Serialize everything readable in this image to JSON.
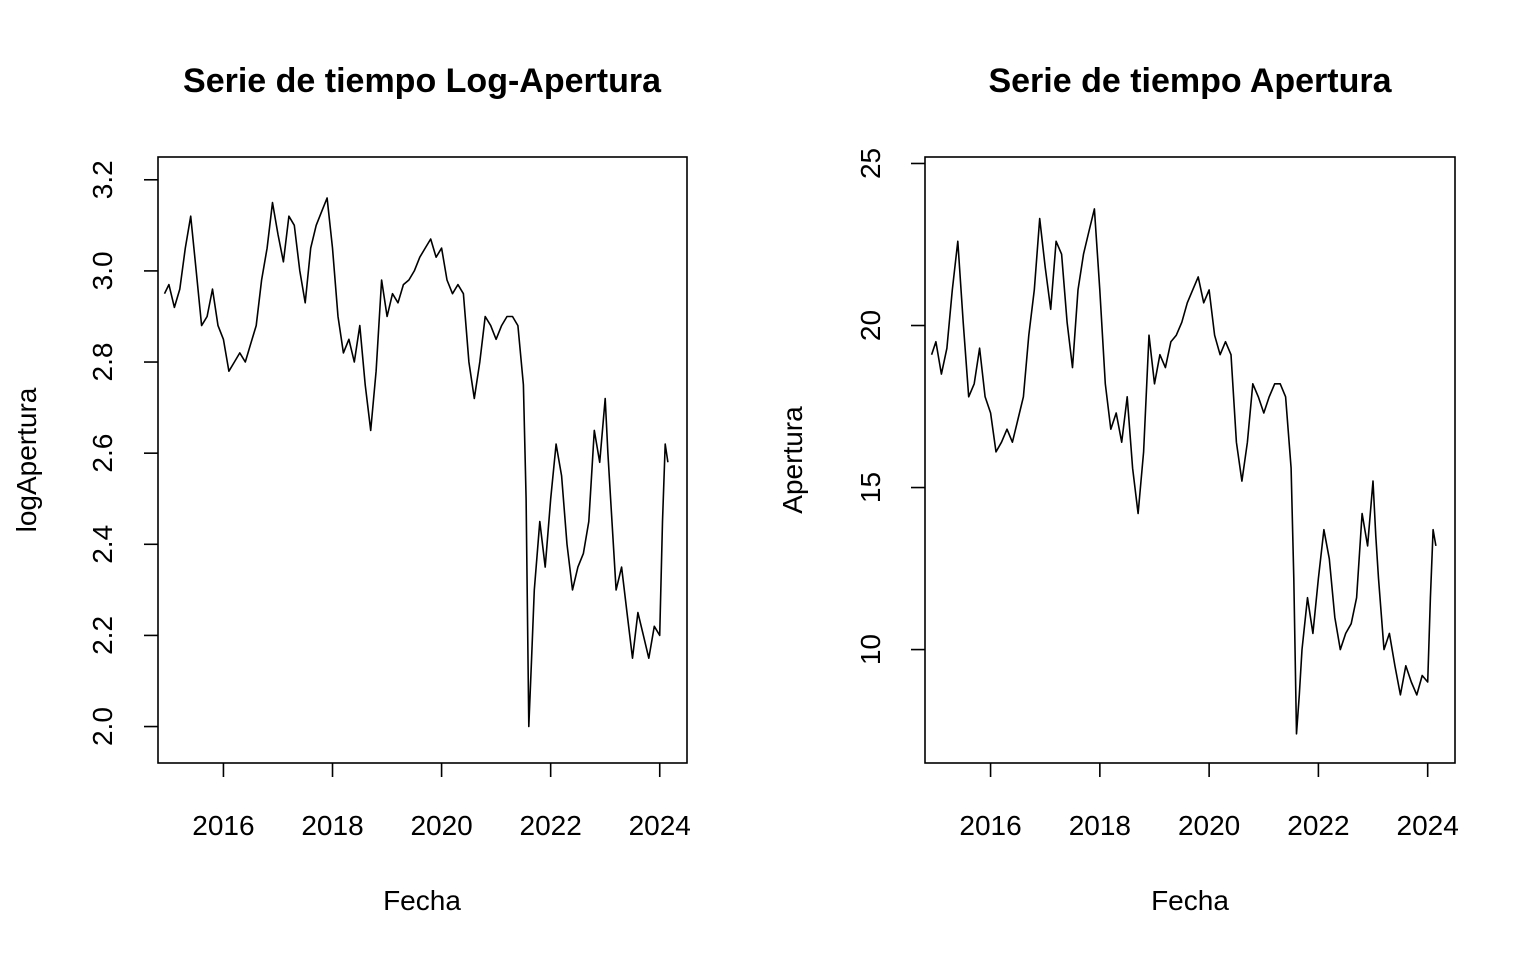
{
  "chart_data": [
    {
      "type": "line",
      "title": "Serie de tiempo Log-Apertura",
      "xlabel": "Fecha",
      "ylabel": "logApertura",
      "xlim": [
        2014.8,
        2024.5
      ],
      "ylim": [
        1.92,
        3.25
      ],
      "x_ticks": [
        2016,
        2018,
        2020,
        2022,
        2024
      ],
      "x_tick_labels": [
        "2016",
        "2018",
        "2020",
        "2022",
        "2024"
      ],
      "y_ticks": [
        2.0,
        2.2,
        2.4,
        2.6,
        2.8,
        3.0,
        3.2
      ],
      "y_tick_labels": [
        "2.0",
        "2.2",
        "2.4",
        "2.6",
        "2.8",
        "3.0",
        "3.2"
      ],
      "grid": false,
      "series": [
        {
          "color": "#000000",
          "x": [
            2014.92,
            2015.0,
            2015.1,
            2015.2,
            2015.3,
            2015.4,
            2015.5,
            2015.6,
            2015.7,
            2015.8,
            2015.9,
            2016.0,
            2016.1,
            2016.2,
            2016.3,
            2016.4,
            2016.5,
            2016.6,
            2016.7,
            2016.8,
            2016.9,
            2017.0,
            2017.1,
            2017.2,
            2017.3,
            2017.4,
            2017.5,
            2017.6,
            2017.7,
            2017.8,
            2017.9,
            2018.0,
            2018.1,
            2018.2,
            2018.3,
            2018.4,
            2018.5,
            2018.6,
            2018.7,
            2018.8,
            2018.9,
            2019.0,
            2019.1,
            2019.2,
            2019.3,
            2019.4,
            2019.5,
            2019.6,
            2019.7,
            2019.8,
            2019.9,
            2020.0,
            2020.1,
            2020.2,
            2020.3,
            2020.4,
            2020.5,
            2020.6,
            2020.7,
            2020.8,
            2020.9,
            2021.0,
            2021.1,
            2021.2,
            2021.3,
            2021.4,
            2021.5,
            2021.55,
            2021.6,
            2021.65,
            2021.7,
            2021.8,
            2021.9,
            2022.0,
            2022.1,
            2022.2,
            2022.3,
            2022.4,
            2022.5,
            2022.6,
            2022.7,
            2022.8,
            2022.9,
            2023.0,
            2023.05,
            2023.1,
            2023.2,
            2023.3,
            2023.4,
            2023.5,
            2023.6,
            2023.7,
            2023.8,
            2023.9,
            2024.0,
            2024.05,
            2024.1,
            2024.15
          ],
          "y": [
            2.95,
            2.97,
            2.92,
            2.96,
            3.05,
            3.12,
            3.0,
            2.88,
            2.9,
            2.96,
            2.88,
            2.85,
            2.78,
            2.8,
            2.82,
            2.8,
            2.84,
            2.88,
            2.98,
            3.05,
            3.15,
            3.08,
            3.02,
            3.12,
            3.1,
            3.0,
            2.93,
            3.05,
            3.1,
            3.13,
            3.16,
            3.05,
            2.9,
            2.82,
            2.85,
            2.8,
            2.88,
            2.75,
            2.65,
            2.78,
            2.98,
            2.9,
            2.95,
            2.93,
            2.97,
            2.98,
            3.0,
            3.03,
            3.05,
            3.07,
            3.03,
            3.05,
            2.98,
            2.95,
            2.97,
            2.95,
            2.8,
            2.72,
            2.8,
            2.9,
            2.88,
            2.85,
            2.88,
            2.9,
            2.9,
            2.88,
            2.75,
            2.5,
            2.0,
            2.15,
            2.3,
            2.45,
            2.35,
            2.5,
            2.62,
            2.55,
            2.4,
            2.3,
            2.35,
            2.38,
            2.45,
            2.65,
            2.58,
            2.72,
            2.6,
            2.5,
            2.3,
            2.35,
            2.25,
            2.15,
            2.25,
            2.2,
            2.15,
            2.22,
            2.2,
            2.45,
            2.62,
            2.58
          ]
        }
      ]
    },
    {
      "type": "line",
      "title": "Serie de tiempo Apertura",
      "xlabel": "Fecha",
      "ylabel": "Apertura",
      "xlim": [
        2014.8,
        2024.5
      ],
      "ylim": [
        6.5,
        25.2
      ],
      "x_ticks": [
        2016,
        2018,
        2020,
        2022,
        2024
      ],
      "x_tick_labels": [
        "2016",
        "2018",
        "2020",
        "2022",
        "2024"
      ],
      "y_ticks": [
        10,
        15,
        20,
        25
      ],
      "y_tick_labels": [
        "10",
        "15",
        "20",
        "25"
      ],
      "grid": false,
      "series": [
        {
          "color": "#000000",
          "x": [
            2014.92,
            2015.0,
            2015.1,
            2015.2,
            2015.3,
            2015.4,
            2015.5,
            2015.6,
            2015.7,
            2015.8,
            2015.9,
            2016.0,
            2016.1,
            2016.2,
            2016.3,
            2016.4,
            2016.5,
            2016.6,
            2016.7,
            2016.8,
            2016.9,
            2017.0,
            2017.1,
            2017.2,
            2017.3,
            2017.4,
            2017.5,
            2017.6,
            2017.7,
            2017.8,
            2017.9,
            2018.0,
            2018.1,
            2018.2,
            2018.3,
            2018.4,
            2018.5,
            2018.6,
            2018.7,
            2018.8,
            2018.9,
            2019.0,
            2019.1,
            2019.2,
            2019.3,
            2019.4,
            2019.5,
            2019.6,
            2019.7,
            2019.8,
            2019.9,
            2020.0,
            2020.1,
            2020.2,
            2020.3,
            2020.4,
            2020.5,
            2020.6,
            2020.7,
            2020.8,
            2020.9,
            2021.0,
            2021.1,
            2021.2,
            2021.3,
            2021.4,
            2021.5,
            2021.55,
            2021.6,
            2021.65,
            2021.7,
            2021.8,
            2021.9,
            2022.0,
            2022.1,
            2022.2,
            2022.3,
            2022.4,
            2022.5,
            2022.6,
            2022.7,
            2022.8,
            2022.9,
            2023.0,
            2023.05,
            2023.1,
            2023.2,
            2023.3,
            2023.4,
            2023.5,
            2023.6,
            2023.7,
            2023.8,
            2023.9,
            2024.0,
            2024.05,
            2024.1,
            2024.15
          ],
          "y": [
            19.1,
            19.5,
            18.5,
            19.3,
            21.1,
            22.6,
            20.1,
            17.8,
            18.2,
            19.3,
            17.8,
            17.3,
            16.1,
            16.4,
            16.8,
            16.4,
            17.1,
            17.8,
            19.7,
            21.1,
            23.3,
            21.8,
            20.5,
            22.6,
            22.2,
            20.1,
            18.7,
            21.1,
            22.2,
            22.9,
            23.6,
            21.1,
            18.2,
            16.8,
            17.3,
            16.4,
            17.8,
            15.6,
            14.2,
            16.1,
            19.7,
            18.2,
            19.1,
            18.7,
            19.5,
            19.7,
            20.1,
            20.7,
            21.1,
            21.5,
            20.7,
            21.1,
            19.7,
            19.1,
            19.5,
            19.1,
            16.4,
            15.2,
            16.4,
            18.2,
            17.8,
            17.3,
            17.8,
            18.2,
            18.2,
            17.8,
            15.6,
            12.2,
            7.4,
            8.6,
            10.0,
            11.6,
            10.5,
            12.2,
            13.7,
            12.8,
            11.0,
            10.0,
            10.5,
            10.8,
            11.6,
            14.2,
            13.2,
            15.2,
            13.5,
            12.2,
            10.0,
            10.5,
            9.5,
            8.6,
            9.5,
            9.0,
            8.6,
            9.2,
            9.0,
            11.6,
            13.7,
            13.2
          ]
        }
      ]
    }
  ]
}
